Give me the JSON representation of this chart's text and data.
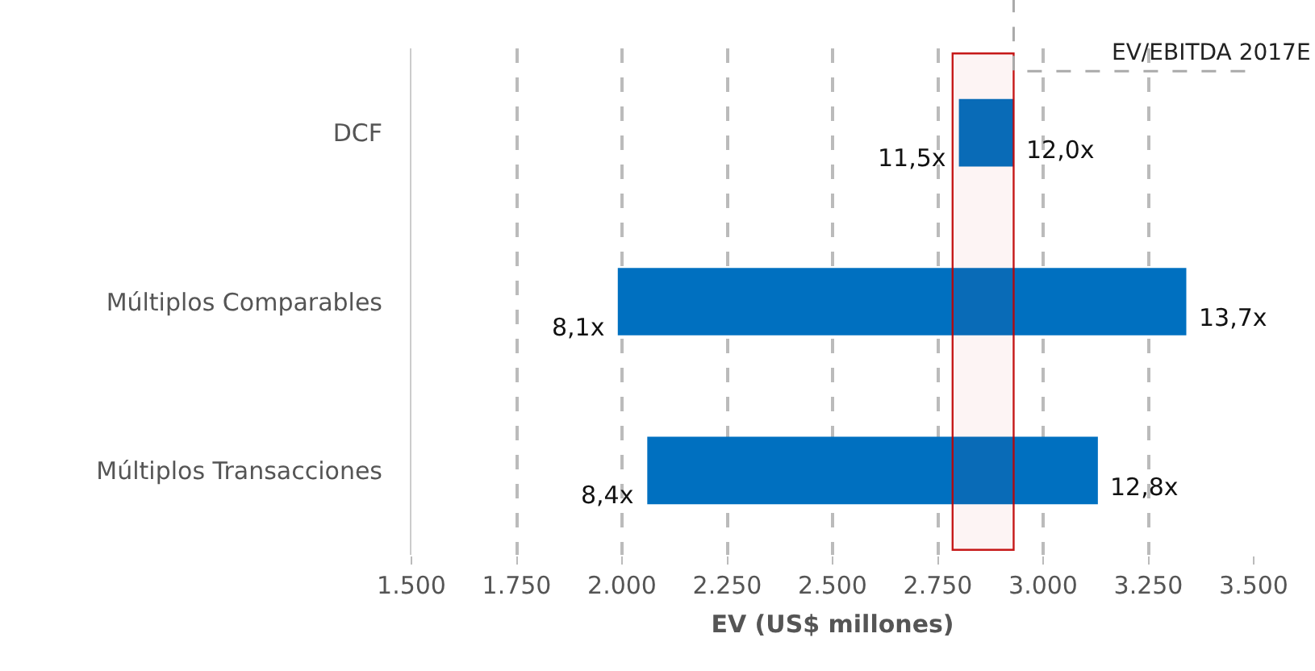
{
  "chart_data": {
    "type": "bar",
    "orientation": "horizontal",
    "categories": [
      "DCF",
      "Múltiplos Comparables",
      "Múltiplos Transacciones"
    ],
    "base": [
      2800,
      1990,
      2060
    ],
    "values": [
      130,
      1350,
      1070
    ],
    "color": "#0070c0",
    "xlabel": "EV (US$ millones)",
    "xlim": [
      1500,
      3500
    ],
    "xticks": [
      {
        "value": 1500,
        "label": "1.500"
      },
      {
        "value": 1750,
        "label": "1.750"
      },
      {
        "value": 2000,
        "label": "2.000"
      },
      {
        "value": 2250,
        "label": "2.250"
      },
      {
        "value": 2500,
        "label": "2.500"
      },
      {
        "value": 2750,
        "label": "2.750"
      },
      {
        "value": 3000,
        "label": "3.000"
      },
      {
        "value": 3250,
        "label": "3.250"
      },
      {
        "value": 3500,
        "label": "3.500"
      }
    ],
    "grid": "x",
    "bands": [
      {
        "axis": "x",
        "from": 2785,
        "to": 2930,
        "color": "#c00000"
      }
    ],
    "annotations": [
      "EV/EBITDA 2017E",
      {
        "text": "11,5x",
        "x": 2800,
        "y": "DCF"
      },
      {
        "text": "12,0x",
        "x": 2930,
        "y": "DCF"
      },
      {
        "text": "8,1x",
        "x": 1990,
        "y": "Múltiplos Comparables"
      },
      {
        "text": "13,7x",
        "x": 3340,
        "y": "Múltiplos Comparables"
      },
      {
        "text": "8,4x",
        "x": 2060,
        "y": "Múltiplos Transacciones"
      },
      {
        "text": "12,8x",
        "x": 3130,
        "y": "Múltiplos Transacciones"
      }
    ]
  }
}
